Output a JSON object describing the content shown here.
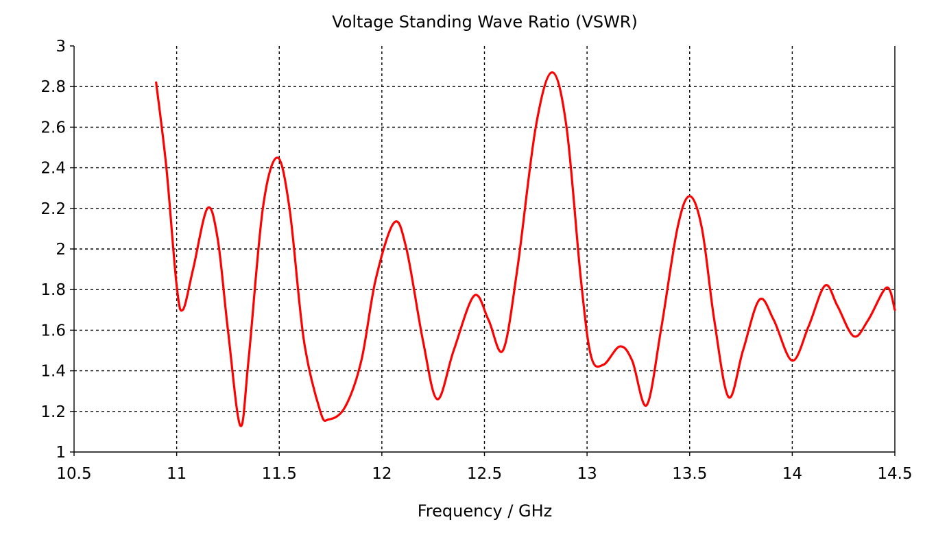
{
  "chart_data": {
    "type": "line",
    "title": "Voltage Standing Wave Ratio (VSWR)",
    "xlabel": "Frequency / GHz",
    "ylabel": "",
    "xlim": [
      10.5,
      14.5
    ],
    "ylim": [
      1,
      3
    ],
    "xticks": [
      10.5,
      11,
      11.5,
      12,
      12.5,
      13,
      13.5,
      14,
      14.5
    ],
    "xtick_labels": [
      "10.5",
      "11",
      "11.5",
      "12",
      "12.5",
      "13",
      "13.5",
      "14",
      "14.5"
    ],
    "yticks": [
      1,
      1.2,
      1.4,
      1.6,
      1.8,
      2,
      2.2,
      2.4,
      2.6,
      2.8,
      3
    ],
    "ytick_labels": [
      "1",
      "1.2",
      "1.4",
      "1.6",
      "1.8",
      "2",
      "2.2",
      "2.4",
      "2.6",
      "2.8",
      "3"
    ],
    "grid": true,
    "legend": "none",
    "series": [
      {
        "color": "#ff0000",
        "x": [
          10.9,
          10.95,
          11.0,
          11.03,
          11.08,
          11.15,
          11.2,
          11.25,
          11.31,
          11.35,
          11.42,
          11.49,
          11.55,
          11.62,
          11.7,
          11.74,
          11.82,
          11.9,
          11.97,
          12.06,
          12.12,
          12.2,
          12.27,
          12.35,
          12.45,
          12.52,
          12.59,
          12.66,
          12.75,
          12.83,
          12.9,
          12.97,
          13.02,
          13.08,
          13.16,
          13.22,
          13.29,
          13.36,
          13.44,
          13.5,
          13.56,
          13.62,
          13.69,
          13.76,
          13.84,
          13.91,
          14.0,
          14.08,
          14.16,
          14.22,
          14.3,
          14.37,
          14.46,
          14.5
        ],
        "y": [
          2.82,
          2.4,
          1.82,
          1.7,
          1.9,
          2.2,
          2.05,
          1.6,
          1.13,
          1.45,
          2.2,
          2.45,
          2.2,
          1.55,
          1.2,
          1.16,
          1.22,
          1.45,
          1.85,
          2.13,
          2.0,
          1.55,
          1.26,
          1.5,
          1.77,
          1.65,
          1.5,
          1.9,
          2.6,
          2.87,
          2.6,
          1.85,
          1.47,
          1.43,
          1.52,
          1.45,
          1.23,
          1.6,
          2.1,
          2.26,
          2.1,
          1.65,
          1.27,
          1.5,
          1.75,
          1.65,
          1.45,
          1.62,
          1.82,
          1.72,
          1.57,
          1.65,
          1.81,
          1.7
        ]
      }
    ]
  }
}
